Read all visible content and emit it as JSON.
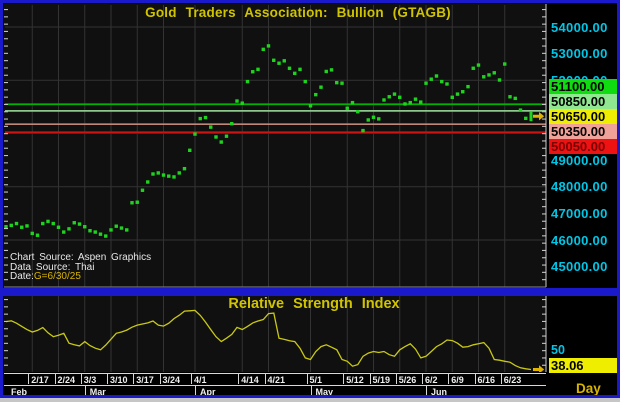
{
  "window": {
    "app": "Aspen Graphics chart window",
    "border_color": "#1a1acc",
    "background_color": "#000000"
  },
  "price_pane": {
    "title": "Gold Traders Association: Bullion (GTAGB)",
    "source_line1": "Chart Source: Aspen Graphics",
    "source_line2": "Data Source: Thai",
    "date_prefix": "Date:",
    "date_overlay": "G=",
    "date_value": "6/30/25"
  },
  "rsi_pane": {
    "title": "Relative Strength Index",
    "mid_label": "50",
    "current_value": "38.06",
    "interval_label": "Day"
  },
  "chart_data": [
    {
      "type": "scatter",
      "title": "Gold Traders Association: Bullion (GTAGB)",
      "series_name": "GTAGB daily close",
      "ylim": [
        44240,
        54830
      ],
      "grid": true,
      "marker_color": "#1ed41e",
      "label_color": "#00c6e6",
      "arrow_color": "#e0b400",
      "grid_y_values": [
        46000,
        48000,
        50000,
        52000,
        54000
      ],
      "x_ticks": [
        {
          "label": "2/17",
          "i": 5
        },
        {
          "label": "2/24",
          "i": 10
        },
        {
          "label": "3/3",
          "i": 15
        },
        {
          "label": "3/10",
          "i": 20
        },
        {
          "label": "3/17",
          "i": 25
        },
        {
          "label": "3/24",
          "i": 30
        },
        {
          "label": "4/1",
          "i": 36
        },
        {
          "label": "4/14",
          "i": 45
        },
        {
          "label": "4/21",
          "i": 50
        },
        {
          "label": "5/1",
          "i": 58
        },
        {
          "label": "5/12",
          "i": 65
        },
        {
          "label": "5/19",
          "i": 70
        },
        {
          "label": "5/26",
          "i": 75
        },
        {
          "label": "6/2",
          "i": 80
        },
        {
          "label": "6/9",
          "i": 85
        },
        {
          "label": "6/16",
          "i": 90
        },
        {
          "label": "6/23",
          "i": 95
        }
      ],
      "month_ticks": [
        {
          "label": "Feb",
          "i": 0
        },
        {
          "label": "Mar",
          "i": 15
        },
        {
          "label": "Apr",
          "i": 36
        },
        {
          "label": "May",
          "i": 58
        },
        {
          "label": "Jun",
          "i": 80
        }
      ],
      "ref_lines": [
        {
          "value": 51100,
          "color": "#00b400"
        },
        {
          "value": 50850,
          "color": "#8cc88c"
        },
        {
          "value": 50350,
          "color": "#c08878"
        },
        {
          "value": 50050,
          "color": "#cc1414"
        }
      ],
      "y_axis_labels_plain": [
        {
          "text": "54000.00",
          "value": 54000
        },
        {
          "text": "53000.00",
          "value": 53000
        },
        {
          "text": "52000.00",
          "value": 52000
        },
        {
          "text": "49000.00",
          "value": 49000
        },
        {
          "text": "48000.00",
          "value": 48000
        },
        {
          "text": "47000.00",
          "value": 47000
        },
        {
          "text": "46000.00",
          "value": 46000
        },
        {
          "text": "45000.00",
          "value": 45000
        }
      ],
      "y_axis_labels_boxed": [
        {
          "text": "51100.00",
          "value": 51100,
          "bg": "#10dd10",
          "fg": "#000000"
        },
        {
          "text": "50850.00",
          "value": 50850,
          "bg": "#8fe88f",
          "fg": "#000000"
        },
        {
          "text": "50650.00",
          "value": 50650,
          "bg": "#f0ee00",
          "fg": "#000000"
        },
        {
          "text": "50350.00",
          "value": 50350,
          "bg": "#f0a298",
          "fg": "#000000"
        },
        {
          "text": "50050.00",
          "value": 50050,
          "bg": "#ee1212",
          "fg": "#7a0000"
        }
      ],
      "last_value": 50650,
      "x_dates": [
        "2/10",
        "2/11",
        "2/12",
        "2/13",
        "2/14",
        "2/17",
        "2/18",
        "2/19",
        "2/20",
        "2/21",
        "2/24",
        "2/25",
        "2/26",
        "2/27",
        "2/28",
        "3/3",
        "3/4",
        "3/5",
        "3/6",
        "3/7",
        "3/10",
        "3/11",
        "3/12",
        "3/13",
        "3/14",
        "3/17",
        "3/18",
        "3/19",
        "3/20",
        "3/21",
        "3/24",
        "3/25",
        "3/26",
        "3/27",
        "3/28",
        "3/31",
        "4/1",
        "4/2",
        "4/3",
        "4/4",
        "4/7",
        "4/8",
        "4/9",
        "4/10",
        "4/11",
        "4/14",
        "4/15",
        "4/16",
        "4/17",
        "4/18",
        "4/21",
        "4/22",
        "4/23",
        "4/24",
        "4/25",
        "4/28",
        "4/29",
        "4/30",
        "5/1",
        "5/2",
        "5/5",
        "5/6",
        "5/7",
        "5/8",
        "5/9",
        "5/12",
        "5/13",
        "5/14",
        "5/15",
        "5/16",
        "5/19",
        "5/20",
        "5/21",
        "5/22",
        "5/23",
        "5/26",
        "5/27",
        "5/28",
        "5/29",
        "5/30",
        "6/2",
        "6/3",
        "6/4",
        "6/5",
        "6/6",
        "6/9",
        "6/10",
        "6/11",
        "6/12",
        "6/13",
        "6/16",
        "6/17",
        "6/18",
        "6/19",
        "6/20",
        "6/23",
        "6/24",
        "6/25",
        "6/26",
        "6/27",
        "6/30"
      ],
      "values": [
        46500,
        46550,
        46620,
        46480,
        46530,
        46250,
        46180,
        46620,
        46700,
        46620,
        46480,
        46300,
        46420,
        46650,
        46600,
        46500,
        46350,
        46300,
        46220,
        46150,
        46380,
        46520,
        46450,
        46380,
        47400,
        47420,
        47870,
        48180,
        48480,
        48520,
        48440,
        48400,
        48370,
        48520,
        48680,
        49370,
        49980,
        50560,
        50600,
        50240,
        49870,
        49680,
        49900,
        50370,
        51220,
        51140,
        51950,
        52320,
        52410,
        53160,
        53290,
        52750,
        52640,
        52730,
        52450,
        52260,
        52410,
        51950,
        51040,
        51460,
        51740,
        52330,
        52390,
        51910,
        51890,
        50950,
        51160,
        50820,
        50110,
        50510,
        50610,
        50550,
        51260,
        51380,
        51480,
        51360,
        51110,
        51160,
        51290,
        51180,
        51890,
        52040,
        52160,
        51950,
        51860,
        51360,
        51480,
        51570,
        51760,
        52450,
        52570,
        52130,
        52200,
        52280,
        52010,
        52610,
        51380,
        51320,
        50880,
        50570,
        50650
      ]
    },
    {
      "type": "line",
      "title": "Relative Strength Index",
      "series_name": "RSI (Day)",
      "ylim": [
        36.5,
        84
      ],
      "line_color": "#c9c914",
      "mid_line_value": 50,
      "current_value": 38.06,
      "values": [
        68.0,
        68.5,
        67.0,
        65.0,
        63.0,
        61.5,
        62.5,
        64.3,
        61.0,
        58.6,
        59.5,
        60.7,
        54.5,
        53.5,
        52.8,
        55.5,
        53.0,
        51.4,
        50.4,
        53.4,
        57.0,
        60.7,
        61.5,
        62.7,
        64.5,
        65.8,
        66.5,
        67.2,
        68.4,
        65.8,
        65.2,
        67.0,
        69.9,
        72.0,
        74.6,
        74.8,
        75.0,
        71.9,
        67.7,
        63.0,
        58.6,
        55.5,
        57.6,
        60.0,
        64.4,
        63.1,
        65.0,
        67.2,
        68.4,
        69.3,
        73.0,
        73.3,
        57.6,
        56.9,
        56.0,
        55.5,
        51.4,
        45.3,
        44.3,
        49.3,
        52.4,
        53.5,
        52.0,
        50.4,
        44.3,
        43.2,
        40.1,
        41.1,
        46.3,
        48.3,
        49.3,
        48.7,
        49.3,
        47.3,
        46.3,
        50.4,
        52.4,
        54.1,
        50.8,
        45.3,
        46.3,
        49.3,
        52.4,
        54.1,
        56.5,
        56.1,
        54.5,
        52.0,
        52.4,
        53.5,
        54.1,
        54.9,
        51.4,
        44.3,
        43.9,
        43.2,
        42.6,
        40.5,
        39.1,
        38.5,
        38.06
      ]
    }
  ]
}
